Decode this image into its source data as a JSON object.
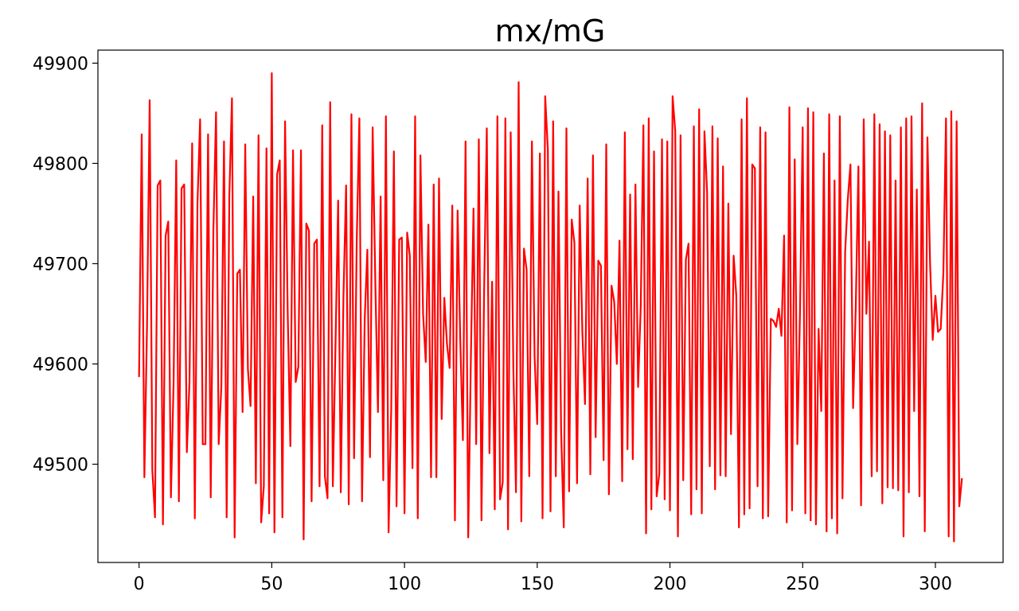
{
  "chart_data": {
    "type": "line",
    "title": "mx/mG",
    "xlabel": "",
    "ylabel": "",
    "xlim": [
      -15.5,
      325.5
    ],
    "ylim": [
      49402,
      49913
    ],
    "xticks": [
      0,
      50,
      100,
      150,
      200,
      250,
      300
    ],
    "yticks": [
      49500,
      49600,
      49700,
      49800,
      49900
    ],
    "grid": false,
    "series": [
      {
        "color": "#ff0000",
        "x": [
          0,
          1,
          2,
          3,
          4,
          5,
          6,
          7,
          8,
          9,
          10,
          11,
          12,
          13,
          14,
          15,
          16,
          17,
          18,
          19,
          20,
          21,
          22,
          23,
          24,
          25,
          26,
          27,
          28,
          29,
          30,
          31,
          32,
          33,
          34,
          35,
          36,
          37,
          38,
          39,
          40,
          41,
          42,
          43,
          44,
          45,
          46,
          47,
          48,
          49,
          50,
          51,
          52,
          53,
          54,
          55,
          56,
          57,
          58,
          59,
          60,
          61,
          62,
          63,
          64,
          65,
          66,
          67,
          68,
          69,
          70,
          71,
          72,
          73,
          74,
          75,
          76,
          77,
          78,
          79,
          80,
          81,
          82,
          83,
          84,
          85,
          86,
          87,
          88,
          89,
          90,
          91,
          92,
          93,
          94,
          95,
          96,
          97,
          98,
          99,
          100,
          101,
          102,
          103,
          104,
          105,
          106,
          107,
          108,
          109,
          110,
          111,
          112,
          113,
          114,
          115,
          116,
          117,
          118,
          119,
          120,
          121,
          122,
          123,
          124,
          125,
          126,
          127,
          128,
          129,
          130,
          131,
          132,
          133,
          134,
          135,
          136,
          137,
          138,
          139,
          140,
          141,
          142,
          143,
          144,
          145,
          146,
          147,
          148,
          149,
          150,
          151,
          152,
          153,
          154,
          155,
          156,
          157,
          158,
          159,
          160,
          161,
          162,
          163,
          164,
          165,
          166,
          167,
          168,
          169,
          170,
          171,
          172,
          173,
          174,
          175,
          176,
          177,
          178,
          179,
          180,
          181,
          182,
          183,
          184,
          185,
          186,
          187,
          188,
          189,
          190,
          191,
          192,
          193,
          194,
          195,
          196,
          197,
          198,
          199,
          200,
          201,
          202,
          203,
          204,
          205,
          206,
          207,
          208,
          209,
          210,
          211,
          212,
          213,
          214,
          215,
          216,
          217,
          218,
          219,
          220,
          221,
          222,
          223,
          224,
          225,
          226,
          227,
          228,
          229,
          230,
          231,
          232,
          233,
          234,
          235,
          236,
          237,
          238,
          239,
          240,
          241,
          242,
          243,
          244,
          245,
          246,
          247,
          248,
          249,
          250,
          251,
          252,
          253,
          254,
          255,
          256,
          257,
          258,
          259,
          260,
          261,
          262,
          263,
          264,
          265,
          266,
          267,
          268,
          269,
          270,
          271,
          272,
          273,
          274,
          275,
          276,
          277,
          278,
          279,
          280,
          281,
          282,
          283,
          284,
          285,
          286,
          287,
          288,
          289,
          290,
          291,
          292,
          293,
          294,
          295,
          296,
          297,
          298,
          299,
          300,
          301,
          302,
          303,
          304,
          305,
          306,
          307,
          308,
          309,
          310
        ],
        "y": [
          49587,
          49829,
          49487,
          49638,
          49863,
          49494,
          49447,
          49778,
          49783,
          49440,
          49728,
          49742,
          49467,
          49580,
          49803,
          49463,
          49775,
          49779,
          49512,
          49582,
          49820,
          49446,
          49760,
          49844,
          49520,
          49520,
          49829,
          49467,
          49733,
          49851,
          49520,
          49577,
          49822,
          49447,
          49767,
          49865,
          49427,
          49690,
          49694,
          49552,
          49819,
          49595,
          49558,
          49767,
          49481,
          49828,
          49442,
          49478,
          49815,
          49451,
          49890,
          49432,
          49789,
          49803,
          49447,
          49842,
          49651,
          49518,
          49813,
          49582,
          49597,
          49813,
          49425,
          49740,
          49733,
          49463,
          49720,
          49724,
          49478,
          49838,
          49488,
          49466,
          49861,
          49478,
          49618,
          49763,
          49472,
          49667,
          49778,
          49460,
          49849,
          49506,
          49723,
          49845,
          49463,
          49644,
          49714,
          49507,
          49836,
          49682,
          49552,
          49767,
          49484,
          49847,
          49432,
          49555,
          49812,
          49458,
          49724,
          49726,
          49451,
          49731,
          49708,
          49496,
          49847,
          49446,
          49808,
          49650,
          49602,
          49739,
          49487,
          49779,
          49487,
          49785,
          49545,
          49666,
          49620,
          49596,
          49758,
          49444,
          49753,
          49625,
          49524,
          49822,
          49427,
          49605,
          49755,
          49520,
          49824,
          49444,
          49675,
          49835,
          49511,
          49682,
          49455,
          49847,
          49465,
          49482,
          49845,
          49435,
          49831,
          49596,
          49472,
          49881,
          49443,
          49715,
          49694,
          49488,
          49822,
          49608,
          49540,
          49810,
          49446,
          49867,
          49814,
          49453,
          49842,
          49488,
          49772,
          49533,
          49437,
          49835,
          49473,
          49744,
          49721,
          49481,
          49758,
          49632,
          49560,
          49785,
          49490,
          49808,
          49527,
          49703,
          49698,
          49504,
          49819,
          49470,
          49678,
          49662,
          49600,
          49723,
          49483,
          49831,
          49515,
          49769,
          49505,
          49779,
          49577,
          49658,
          49838,
          49431,
          49845,
          49455,
          49812,
          49468,
          49491,
          49824,
          49465,
          49822,
          49454,
          49867,
          49832,
          49428,
          49828,
          49484,
          49704,
          49720,
          49450,
          49837,
          49475,
          49854,
          49451,
          49832,
          49771,
          49498,
          49837,
          49475,
          49825,
          49489,
          49797,
          49488,
          49760,
          49530,
          49708,
          49668,
          49437,
          49844,
          49450,
          49865,
          49456,
          49799,
          49795,
          49478,
          49836,
          49446,
          49831,
          49448,
          49645,
          49643,
          49637,
          49655,
          49628,
          49728,
          49442,
          49856,
          49454,
          49804,
          49520,
          49653,
          49836,
          49451,
          49855,
          49444,
          49851,
          49440,
          49635,
          49553,
          49810,
          49433,
          49849,
          49446,
          49783,
          49431,
          49847,
          49466,
          49712,
          49764,
          49799,
          49556,
          49657,
          49797,
          49459,
          49844,
          49650,
          49722,
          49488,
          49849,
          49493,
          49839,
          49461,
          49832,
          49477,
          49828,
          49476,
          49783,
          49474,
          49836,
          49428,
          49845,
          49472,
          49847,
          49553,
          49774,
          49468,
          49860,
          49433,
          49826,
          49700,
          49624,
          49668,
          49632,
          49635,
          49690,
          49845,
          49428,
          49852,
          49423,
          49842,
          49458,
          49486
        ]
      }
    ]
  }
}
